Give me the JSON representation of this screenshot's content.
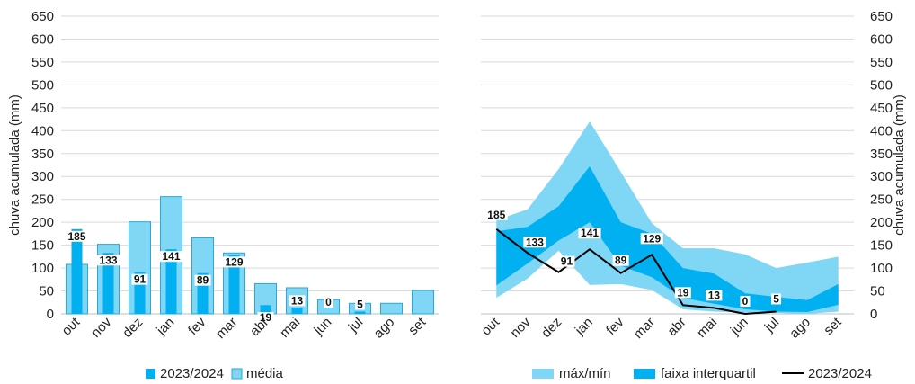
{
  "colors": {
    "bar_current": "#00b0f0",
    "bar_mean": "#7fd6f5",
    "bar_mean_border": "#2aa8d8",
    "band_minmax": "#7fd6f5",
    "band_iqr": "#00b0f0",
    "line_current": "#000000",
    "grid": "#d9d9d9",
    "label_box": "#ffffff"
  },
  "chart_data": [
    {
      "type": "bar",
      "categories": [
        "out",
        "nov",
        "dez",
        "jan",
        "fev",
        "mar",
        "abr",
        "mai",
        "jun",
        "jul",
        "ago",
        "set"
      ],
      "ylabel": "chuva acumulada (mm)",
      "ylim": [
        0,
        650
      ],
      "yticks": [
        0,
        50,
        100,
        150,
        200,
        250,
        300,
        350,
        400,
        450,
        500,
        550,
        600,
        650
      ],
      "grid": true,
      "legend_position": "bottom",
      "series": [
        {
          "name": "2023/2024",
          "values": [
            185,
            133,
            91,
            141,
            89,
            129,
            19,
            13,
            0,
            5,
            null,
            null
          ]
        },
        {
          "name": "média",
          "values": [
            108,
            152,
            201,
            256,
            166,
            133,
            66,
            57,
            31,
            23,
            23,
            51
          ]
        }
      ],
      "data_labels": [
        "185",
        "133",
        "91",
        "141",
        "89",
        "129",
        "19",
        "13",
        "0",
        "5",
        "",
        ""
      ]
    },
    {
      "type": "area",
      "categories": [
        "out",
        "nov",
        "dez",
        "jan",
        "fev",
        "mar",
        "abr",
        "mai",
        "jun",
        "jul",
        "ago",
        "set"
      ],
      "ylabel": "chuva acumulada (mm)",
      "ylim": [
        0,
        650
      ],
      "yticks": [
        0,
        50,
        100,
        150,
        200,
        250,
        300,
        350,
        400,
        450,
        500,
        550,
        600,
        650
      ],
      "grid": true,
      "legend_position": "bottom",
      "series": [
        {
          "name": "máx/mín",
          "min": [
            35,
            77,
            138,
            63,
            65,
            52,
            10,
            5,
            3,
            2,
            0,
            5
          ],
          "max": [
            205,
            228,
            316,
            420,
            310,
            198,
            143,
            143,
            130,
            100,
            112,
            125
          ]
        },
        {
          "name": "faixa interquartil",
          "min": [
            62,
            110,
            160,
            200,
            105,
            80,
            35,
            22,
            10,
            5,
            4,
            20
          ],
          "max": [
            180,
            190,
            235,
            322,
            200,
            175,
            100,
            88,
            45,
            37,
            30,
            65
          ]
        },
        {
          "name": "2023/2024",
          "values": [
            185,
            133,
            91,
            141,
            89,
            129,
            19,
            13,
            0,
            5,
            null,
            null
          ]
        }
      ],
      "data_labels": [
        "185",
        "133",
        "91",
        "141",
        "89",
        "129",
        "19",
        "13",
        "0",
        "5",
        "",
        ""
      ]
    }
  ]
}
